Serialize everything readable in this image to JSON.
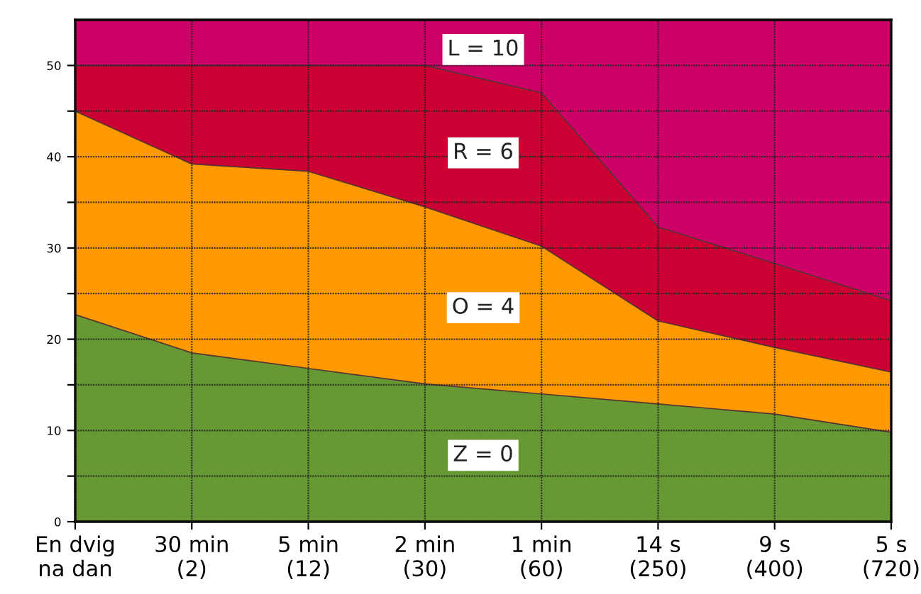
{
  "chart_data": {
    "type": "area",
    "stacked": true,
    "categories": [
      "En dvig\nna dan",
      "30 min\n(2)",
      "5 min\n(12)",
      "2 min\n(30)",
      "1 min\n(60)",
      "14 s\n(250)",
      "9 s\n(400)",
      "5 s\n(720)"
    ],
    "series": [
      {
        "name": "Z = 0",
        "color": "#669933",
        "values": [
          22.7,
          18.5,
          16.8,
          15.1,
          14.0,
          12.9,
          11.8,
          9.8
        ]
      },
      {
        "name": "O = 4",
        "color": "#ff9900",
        "values": [
          22.3,
          20.7,
          21.6,
          19.4,
          16.2,
          9.1,
          7.3,
          6.6
        ]
      },
      {
        "name": "R = 6",
        "color": "#cc0033",
        "values": [
          5.0,
          10.8,
          11.6,
          15.5,
          16.8,
          10.3,
          9.2,
          7.8
        ]
      },
      {
        "name": "L = 10",
        "color": "#cc0066",
        "values": [
          5.0,
          5.0,
          5.0,
          5.0,
          8.0,
          22.7,
          26.7,
          30.8
        ]
      }
    ],
    "ylim": [
      0,
      55
    ],
    "yticks": [
      0,
      {
        "value": 5,
        "label": null
      },
      10,
      {
        "value": 15,
        "label": null
      },
      20,
      {
        "value": 25,
        "label": null
      },
      30,
      {
        "value": 35,
        "label": null
      },
      40,
      {
        "value": 45,
        "label": null
      },
      50
    ],
    "grid": true
  }
}
